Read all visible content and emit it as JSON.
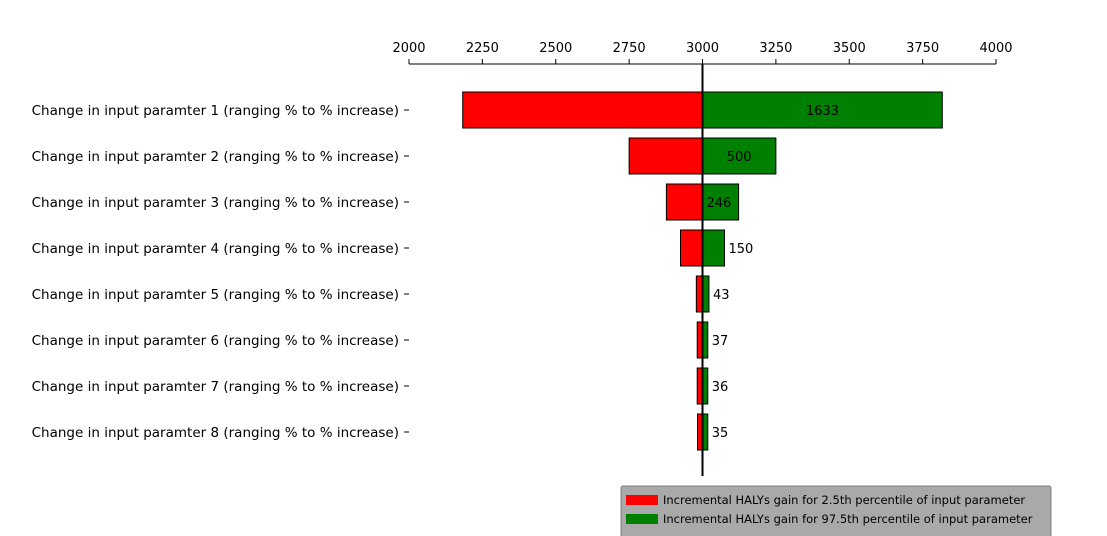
{
  "chart_data": {
    "type": "bar",
    "orientation": "horizontal",
    "style": "tornado",
    "baseline": 3000,
    "xlim": [
      2000,
      4000
    ],
    "xticks": [
      2000,
      2250,
      2500,
      2750,
      3000,
      3250,
      3500,
      3750,
      4000
    ],
    "x_axis_position": "top",
    "grid": false,
    "categories": [
      "Change in input paramter 1 (ranging % to % increase)",
      "Change in input paramter 2 (ranging % to % increase)",
      "Change in input paramter 3 (ranging % to % increase)",
      "Change in input paramter 4 (ranging % to % increase)",
      "Change in input paramter 5 (ranging % to % increase)",
      "Change in input paramter 6 (ranging % to % increase)",
      "Change in input paramter 7 (ranging % to % increase)",
      "Change in input paramter 8 (ranging % to % increase)"
    ],
    "series": [
      {
        "name": "Incremental HALYs gain for 2.5th percentile of input parameter",
        "color": "#ff0000",
        "values": [
          2183,
          2750,
          2877,
          2925,
          2979,
          2982,
          2982,
          2983
        ]
      },
      {
        "name": "Incremental HALYs gain for 97.5th percentile of input parameter",
        "color": "#008000",
        "values": [
          3817,
          3250,
          3123,
          3075,
          3022,
          3018,
          3018,
          3018
        ]
      }
    ],
    "data_labels": [
      "1633",
      "500",
      "246",
      "150",
      "43",
      "37",
      "36",
      "35"
    ],
    "legend_position": "bottom-right",
    "legend_background": "#a9a9a9"
  }
}
